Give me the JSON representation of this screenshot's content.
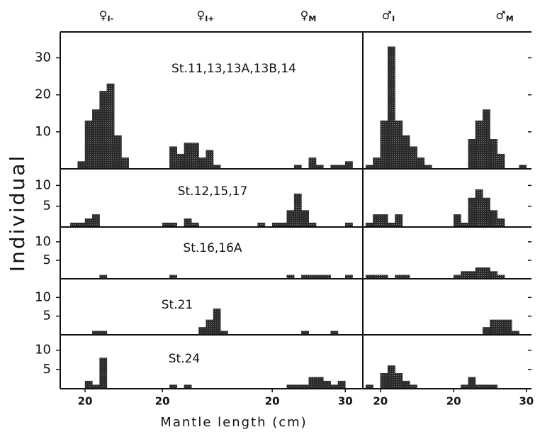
{
  "chart_data": {
    "type": "histogram",
    "color": "#2b2b2b",
    "xlabel": "Mantle  length  (cm)",
    "ylabel": "Individual",
    "groups": [
      {
        "symbol": "♀",
        "sub": "I-",
        "xlim": [
          16.6,
          30.1
        ],
        "xticks": [
          20
        ]
      },
      {
        "symbol": "♀",
        "sub": "I+",
        "xlim": [
          19.5,
          34.5
        ],
        "xticks": [
          20
        ]
      },
      {
        "symbol": "♀",
        "sub": "M",
        "xlim": [
          19.4,
          32.4
        ],
        "xticks": [
          20,
          30
        ]
      },
      {
        "symbol": "♂",
        "sub": "I",
        "xlim": [
          17.6,
          29.3
        ],
        "xticks": [
          20
        ]
      },
      {
        "symbol": "♂",
        "sub": "M",
        "xlim": [
          19.3,
          30.7
        ],
        "xticks": [
          20,
          30
        ]
      }
    ],
    "rows": [
      {
        "label": "St.11,13,13A,13B,14",
        "ylim": [
          0,
          37
        ],
        "yticks": [
          10,
          20,
          30
        ],
        "hists": [
          {
            "bins": [
              19,
              20,
              21,
              22,
              23,
              24,
              25,
              26
            ],
            "counts": [
              2,
              13,
              16,
              21,
              23,
              9,
              3
            ]
          },
          {
            "bins": [
              21,
              22,
              23,
              24,
              25,
              26,
              27,
              28
            ],
            "counts": [
              6,
              4,
              7,
              7,
              3,
              5,
              1
            ]
          },
          {
            "bins": [
              23,
              24,
              25,
              26,
              27,
              28,
              29,
              30,
              31
            ],
            "counts": [
              1,
              0,
              3,
              1,
              0,
              1,
              1,
              2
            ]
          },
          {
            "bins": [
              18,
              19,
              20,
              21,
              22,
              23,
              24,
              25,
              26,
              27
            ],
            "counts": [
              1,
              3,
              13,
              33,
              13,
              9,
              6,
              3,
              1
            ]
          },
          {
            "bins": [
              22,
              23,
              24,
              25,
              26,
              27,
              28,
              29,
              30
            ],
            "counts": [
              8,
              13,
              16,
              8,
              4,
              0,
              0,
              1
            ]
          }
        ]
      },
      {
        "label": "St.12,15,17",
        "ylim": [
          0,
          14
        ],
        "yticks": [
          5,
          10
        ],
        "hists": [
          {
            "bins": [
              18,
              19,
              20,
              21,
              22
            ],
            "counts": [
              1,
              1,
              2,
              3
            ]
          },
          {
            "bins": [
              20,
              21,
              22,
              23,
              24,
              25
            ],
            "counts": [
              1,
              1,
              0,
              2,
              1
            ]
          },
          {
            "bins": [
              18,
              19,
              20,
              21,
              22,
              23,
              24,
              25,
              26,
              27,
              28,
              29,
              30,
              31
            ],
            "counts": [
              1,
              0,
              1,
              1,
              4,
              8,
              4,
              1,
              0,
              0,
              0,
              0,
              1
            ]
          },
          {
            "bins": [
              18,
              19,
              20,
              21,
              22,
              23
            ],
            "counts": [
              1,
              3,
              3,
              1,
              3
            ]
          },
          {
            "bins": [
              20,
              21,
              22,
              23,
              24,
              25,
              26,
              27
            ],
            "counts": [
              3,
              1,
              7,
              9,
              7,
              4,
              2
            ]
          }
        ]
      },
      {
        "label": "St.16,16A",
        "ylim": [
          0,
          14
        ],
        "yticks": [
          5,
          10
        ],
        "hists": [
          {
            "bins": [
              22,
              23
            ],
            "counts": [
              1
            ]
          },
          {
            "bins": [
              21,
              22
            ],
            "counts": [
              1
            ]
          },
          {
            "bins": [
              22,
              23,
              24,
              25,
              26,
              27,
              28,
              29,
              30,
              31
            ],
            "counts": [
              1,
              0,
              1,
              1,
              1,
              1,
              0,
              0,
              1
            ]
          },
          {
            "bins": [
              18,
              19,
              20,
              21,
              22,
              23,
              24
            ],
            "counts": [
              1,
              1,
              1,
              0,
              1,
              1
            ]
          },
          {
            "bins": [
              20,
              21,
              22,
              23,
              24,
              25,
              26,
              27
            ],
            "counts": [
              1,
              2,
              2,
              3,
              3,
              2,
              1
            ]
          }
        ]
      },
      {
        "label": "St.21",
        "ylim": [
          0,
          15
        ],
        "yticks": [
          5,
          10
        ],
        "hists": [
          {
            "bins": [
              21,
              22,
              23
            ],
            "counts": [
              1,
              1
            ]
          },
          {
            "bins": [
              25,
              26,
              27,
              28,
              29
            ],
            "counts": [
              2,
              4,
              7,
              1
            ]
          },
          {
            "bins": [
              24,
              25,
              26,
              27,
              28,
              29
            ],
            "counts": [
              1,
              0,
              0,
              0,
              1
            ]
          },
          {
            "bins": [],
            "counts": []
          },
          {
            "bins": [
              24,
              25,
              26,
              27,
              28,
              29
            ],
            "counts": [
              2,
              4,
              4,
              4,
              1
            ]
          }
        ]
      },
      {
        "label": "St.24",
        "ylim": [
          0,
          14
        ],
        "yticks": [
          5,
          10
        ],
        "hists": [
          {
            "bins": [
              20,
              21,
              22,
              23
            ],
            "counts": [
              2,
              1,
              8
            ]
          },
          {
            "bins": [
              21,
              22,
              23,
              24
            ],
            "counts": [
              1,
              0,
              1
            ]
          },
          {
            "bins": [
              22,
              23,
              24,
              25,
              26,
              27,
              28,
              29,
              30
            ],
            "counts": [
              1,
              1,
              1,
              3,
              3,
              2,
              1,
              2
            ]
          },
          {
            "bins": [
              18,
              19,
              20,
              21,
              22,
              23,
              24,
              25
            ],
            "counts": [
              1,
              0,
              4,
              6,
              4,
              2,
              1
            ]
          },
          {
            "bins": [
              21,
              22,
              23,
              24,
              25,
              26
            ],
            "counts": [
              1,
              3,
              1,
              1,
              1
            ]
          }
        ]
      }
    ]
  }
}
